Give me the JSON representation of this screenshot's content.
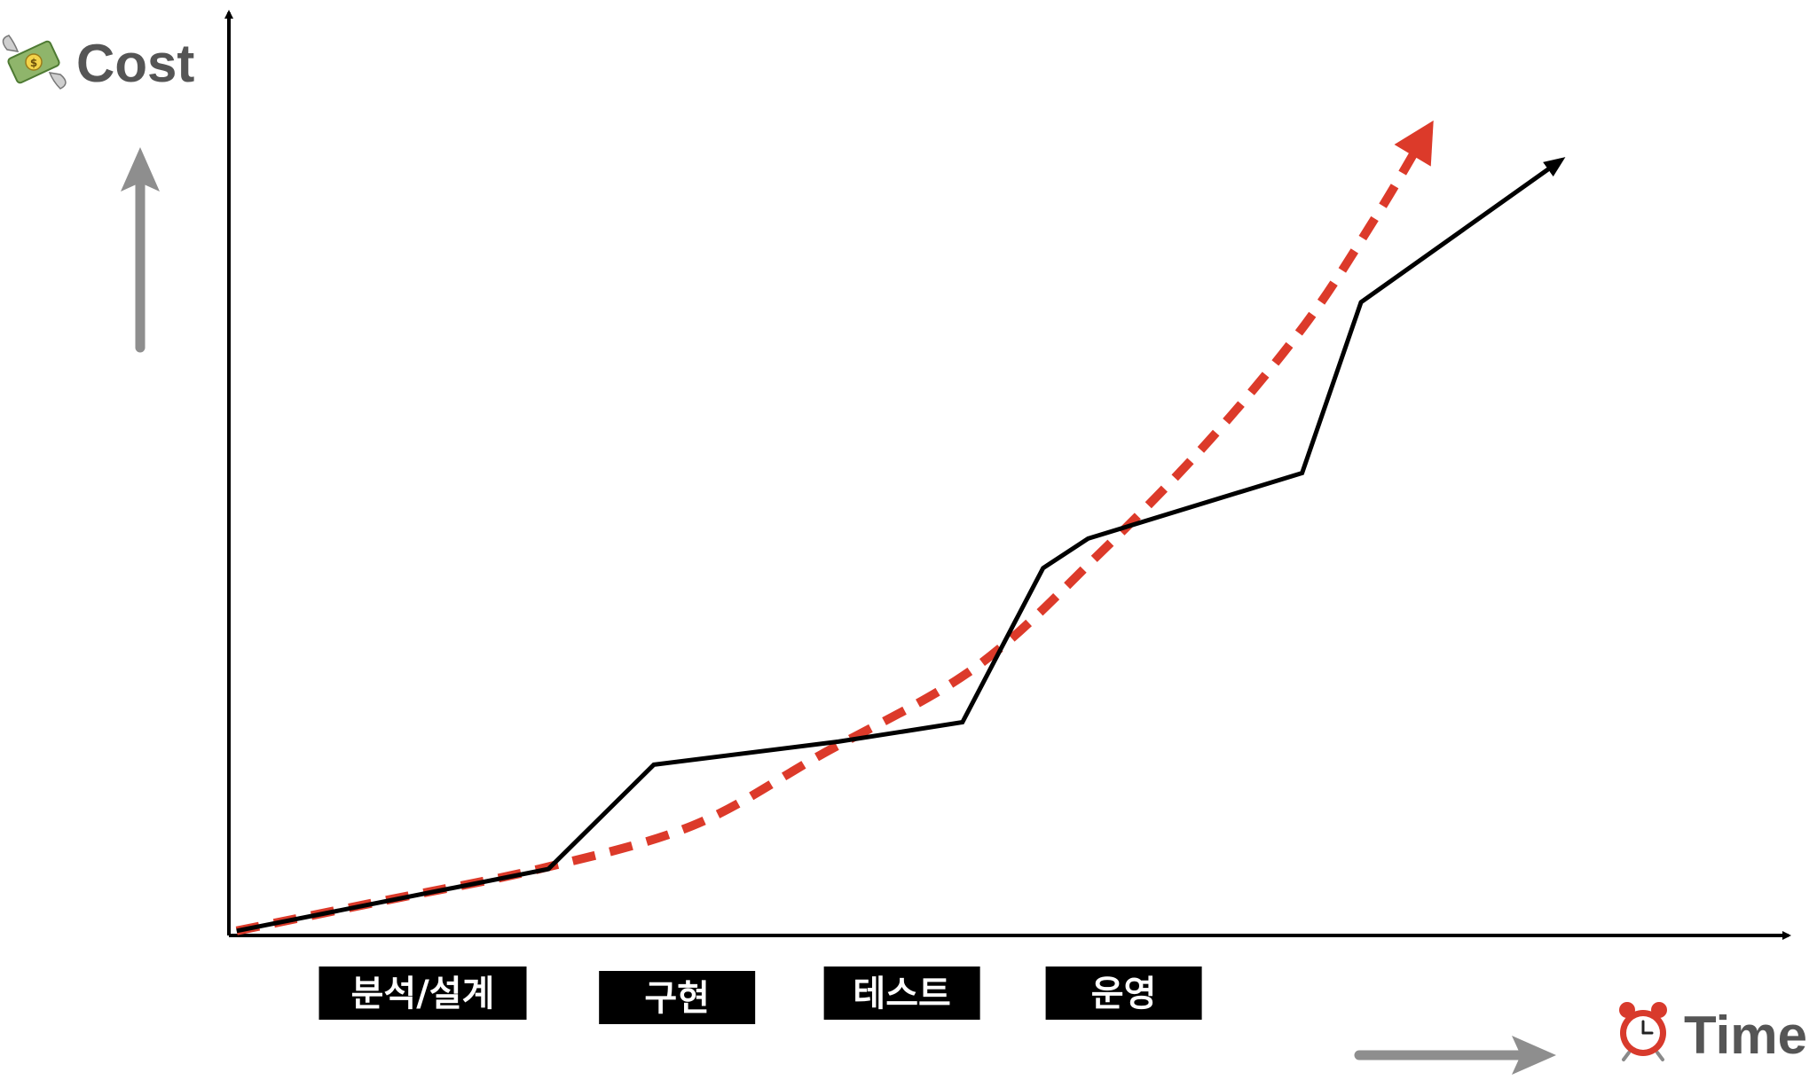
{
  "chart_data": {
    "type": "line",
    "title": "",
    "xlabel": "Time",
    "ylabel": "Cost",
    "xlabel_icon": "alarm-clock-icon",
    "ylabel_icon": "money-with-wings-icon",
    "xlim": [
      0,
      10
    ],
    "ylim": [
      0,
      10
    ],
    "grid": false,
    "phases": [
      "분석/설계",
      "구현",
      "테스트",
      "운영"
    ],
    "series": [
      {
        "style": "solid",
        "color": "#000000",
        "points": [
          [
            0.05,
            0.05
          ],
          [
            2.06,
            0.72
          ],
          [
            2.74,
            1.85
          ],
          [
            3.93,
            2.1
          ],
          [
            4.73,
            2.31
          ],
          [
            5.25,
            3.98
          ],
          [
            5.54,
            4.3
          ],
          [
            6.92,
            5.01
          ],
          [
            7.3,
            6.86
          ],
          [
            8.59,
            8.4
          ]
        ]
      },
      {
        "style": "dashed",
        "color": "#dc3a2a",
        "points": [
          [
            0.05,
            0.05
          ],
          [
            1.01,
            0.38
          ],
          [
            2.0,
            0.72
          ],
          [
            2.99,
            1.19
          ],
          [
            3.82,
            1.96
          ],
          [
            4.81,
            2.9
          ],
          [
            5.61,
            4.13
          ],
          [
            6.32,
            5.36
          ],
          [
            6.94,
            6.62
          ],
          [
            7.39,
            7.77
          ],
          [
            7.65,
            8.5
          ]
        ]
      }
    ]
  }
}
